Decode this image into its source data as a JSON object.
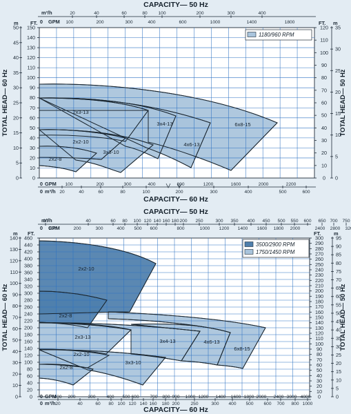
{
  "chart_data": [
    {
      "type": "area",
      "top_axis": {
        "title": "CAPACITY— 50 Hz",
        "unit_row1": "m³/h",
        "row1_ticks": [
          "20",
          "40",
          "60",
          "80",
          "100",
          "200",
          "300",
          "400"
        ],
        "unit_row2": "GPM",
        "row2_ticks": [
          "100",
          "200",
          "300",
          "400",
          "600",
          "1000",
          "1400",
          "1800"
        ]
      },
      "bottom_axis": {
        "title": "CAPACITY— 60 Hz",
        "unit_row1": "GPM",
        "row1_ticks": [
          "100",
          "200",
          "300",
          "400",
          "800",
          "1200",
          "1600",
          "2000",
          "2200"
        ],
        "unit_row2": "m³/h",
        "row2_ticks": [
          "20",
          "40",
          "60",
          "80",
          "100",
          "200",
          "300",
          "400",
          "500",
          "600"
        ]
      },
      "left_axis": {
        "title": "TOTAL HEAD— 60 Hz",
        "unit_outer": "m",
        "outer_ticks": [
          "50",
          "45",
          "40",
          "35",
          "30",
          "25",
          "20",
          "15",
          "10",
          "5",
          "0"
        ],
        "unit_inner": "FT.",
        "inner_ticks": [
          "150",
          "140",
          "130",
          "120",
          "110",
          "100",
          "90",
          "80",
          "70",
          "60",
          "50",
          "40",
          "30",
          "20",
          "10",
          "0"
        ]
      },
      "right_axis": {
        "title": "TOTAL HEAD— 50 Hz",
        "unit_inner": "FT.",
        "inner_ticks": [
          "120",
          "110",
          "100",
          "90",
          "80",
          "70",
          "60",
          "50",
          "40",
          "30",
          "20",
          "10",
          "0"
        ],
        "unit_outer": "m",
        "outer_ticks": [
          "35",
          "30",
          "25",
          "20",
          "15",
          "10",
          "5",
          "0"
        ]
      },
      "legend": [
        {
          "label": "1180/960 RPM",
          "color": "#a9c4dc"
        }
      ],
      "ylim_ft": [
        0,
        155
      ],
      "x_units": "GPM",
      "series": [
        {
          "name": "6x8-15",
          "label": "6x8-15",
          "shutoff_head_ft": 102,
          "max_flow_gpm": 2100,
          "min_head_ft": 10
        },
        {
          "name": "4x6-13",
          "label": "4x6-13",
          "shutoff_head_ft": 80,
          "max_flow_gpm": 900,
          "min_head_ft": 18
        },
        {
          "name": "3x4-13",
          "label": "3x4-13",
          "shutoff_head_ft": 80,
          "max_flow_gpm": 600,
          "min_head_ft": 28
        },
        {
          "name": "2x3-13",
          "label": "2x3-13",
          "shutoff_head_ft": 80,
          "max_flow_gpm": 350,
          "min_head_ft": 50
        },
        {
          "name": "3x3-10",
          "label": "3x3-10",
          "shutoff_head_ft": 46,
          "max_flow_gpm": 330,
          "min_head_ft": 7
        },
        {
          "name": "2x2-10",
          "label": "2x2-10",
          "shutoff_head_ft": 46,
          "max_flow_gpm": 230,
          "min_head_ft": 28
        },
        {
          "name": "2x2-8",
          "label": "2x2-8",
          "shutoff_head_ft": 29,
          "max_flow_gpm": 165,
          "min_head_ft": 5
        }
      ]
    },
    {
      "type": "area",
      "top_axis": {
        "title": "CAPACITY— 50 Hz",
        "unit_row1": "m³/h",
        "row1_ticks": [
          "20",
          "40",
          "60",
          "80",
          "100",
          "120",
          "140",
          "160",
          "180",
          "200",
          "250",
          "300",
          "350",
          "400",
          "450",
          "500",
          "550",
          "600",
          "650",
          "700",
          "750"
        ],
        "unit_row2": "GPM",
        "row2_ticks": [
          "100",
          "200",
          "300",
          "400",
          "500",
          "600",
          "800",
          "1000",
          "1200",
          "1400",
          "1600",
          "1800",
          "2000",
          "2400",
          "2800",
          "3200"
        ]
      },
      "bottom_axis": {
        "title": "CAPACITY— 60 Hz",
        "unit_row1": "GPM",
        "row1_ticks": [
          "100",
          "200",
          "300",
          "400",
          "500",
          "600",
          "700",
          "800",
          "900",
          "1000",
          "1200",
          "1400",
          "1600",
          "1800",
          "2000",
          "2400",
          "3000",
          "4000"
        ],
        "unit_row2": "m³/h",
        "row2_ticks": [
          "20",
          "40",
          "60",
          "80",
          "100",
          "120",
          "140",
          "160",
          "180",
          "200",
          "250",
          "300",
          "400",
          "500",
          "600",
          "700",
          "800",
          "1000"
        ]
      },
      "left_axis": {
        "title": "TOTAL HEAD— 60 Hz",
        "unit_outer": "m",
        "outer_ticks": [
          "140",
          "130",
          "120",
          "110",
          "100",
          "90",
          "80",
          "70",
          "60",
          "50",
          "40",
          "30",
          "20",
          "10",
          "0"
        ],
        "unit_inner": "FT.",
        "inner_ticks": [
          "460",
          "440",
          "420",
          "400",
          "380",
          "360",
          "340",
          "320",
          "300",
          "280",
          "260",
          "240",
          "220",
          "200",
          "180",
          "160",
          "140",
          "120",
          "100",
          "80",
          "60",
          "40",
          "20",
          "0"
        ]
      },
      "right_axis": {
        "title": "TOTAL HEAD— 50 Hz",
        "unit_inner": "FT.",
        "inner_ticks": [
          "300",
          "290",
          "280",
          "270",
          "260",
          "250",
          "240",
          "230",
          "220",
          "210",
          "200",
          "190",
          "180",
          "170",
          "160",
          "150",
          "140",
          "130",
          "120",
          "110",
          "100",
          "90",
          "80",
          "70",
          "60",
          "50",
          "40",
          "30",
          "20",
          "10",
          "0"
        ],
        "unit_outer": "m",
        "outer_ticks": [
          "95",
          "90",
          "85",
          "80",
          "75",
          "70",
          "65",
          "60",
          "55",
          "50",
          "45",
          "40",
          "35",
          "30",
          "25",
          "20",
          "15",
          "10",
          "5",
          "0"
        ]
      },
      "legend": [
        {
          "label": "3500/2900 RPM",
          "color": "#4f7fac"
        },
        {
          "label": "1750/1450 RPM",
          "color": "#a9c4dc"
        }
      ],
      "ylim_ft": [
        0,
        470
      ],
      "x_units": "GPM",
      "series": [
        {
          "name": "2x2-10 3500",
          "label": "2x2-10",
          "rpm": "3500/2900",
          "shutoff_head_ft": 440,
          "max_flow_gpm": 370,
          "min_head_ft": 150
        },
        {
          "name": "2x2-8 3500",
          "label": "2x2-8",
          "rpm": "3500/2900",
          "shutoff_head_ft": 285,
          "max_flow_gpm": 250,
          "min_head_ft": 165
        },
        {
          "name": "2x3-13",
          "label": "2x3-13",
          "rpm": "1750/1450",
          "shutoff_head_ft": 180,
          "max_flow_gpm": 330,
          "min_head_ft": 75
        },
        {
          "name": "3x4-13",
          "label": "3x4-13",
          "rpm": "1750/1450",
          "shutoff_head_ft": 180,
          "max_flow_gpm": 700,
          "min_head_ft": 75
        },
        {
          "name": "4x6-13",
          "label": "4x6-13",
          "rpm": "1750/1450",
          "shutoff_head_ft": 180,
          "max_flow_gpm": 1350,
          "min_head_ft": 75
        },
        {
          "name": "6x8-15",
          "label": "6x8-15",
          "rpm": "1750/1450",
          "shutoff_head_ft": 180,
          "max_flow_gpm": 2400,
          "min_head_ft": 70
        },
        {
          "name": "2x2-10 1750",
          "label": "2x2-10",
          "rpm": "1750/1450",
          "shutoff_head_ft": 110,
          "max_flow_gpm": 180,
          "min_head_ft": 60
        },
        {
          "name": "3x3-10",
          "label": "3x3-10",
          "rpm": "1750/1450",
          "shutoff_head_ft": 110,
          "max_flow_gpm": 500,
          "min_head_ft": 25
        },
        {
          "name": "2x2-8 1750",
          "label": "2x2-8",
          "rpm": "1750/1450",
          "shutoff_head_ft": 70,
          "max_flow_gpm": 140,
          "min_head_ft": 30
        }
      ]
    }
  ]
}
